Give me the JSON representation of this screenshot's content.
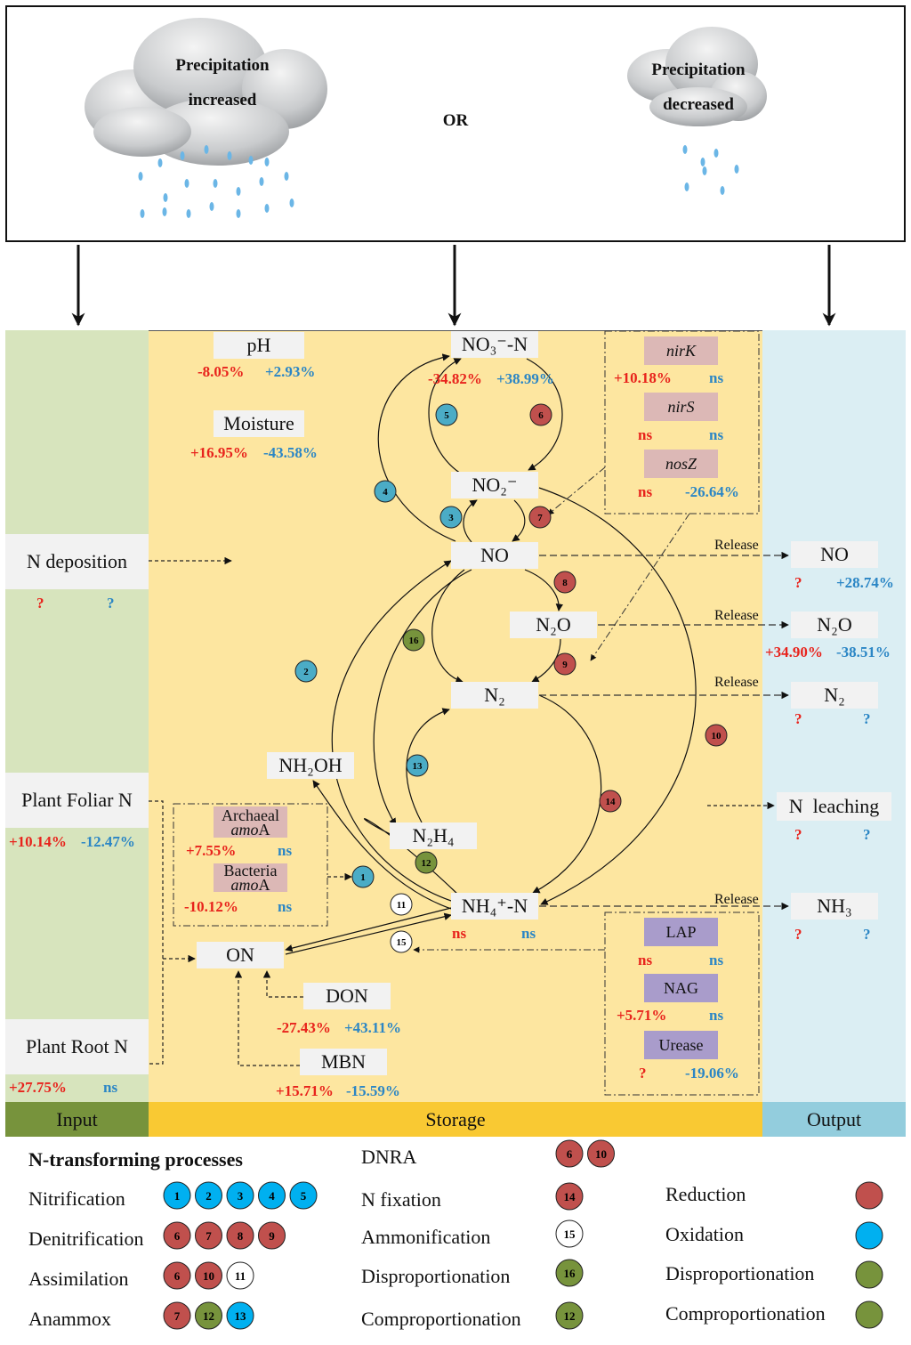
{
  "header": {
    "cloud_left": [
      "Precipitation",
      "increased"
    ],
    "or": "OR",
    "cloud_right": [
      "Precipitation",
      "decreased"
    ]
  },
  "colors": {
    "input_panel": "#d7e4bd",
    "storage_panel": "#fde6a0",
    "output_panel": "#dbeef3",
    "input_bar": "#77933c",
    "storage_bar": "#f9c933",
    "output_bar": "#93cddd",
    "increase_value": "#e8231c",
    "decrease_value": "#2b86c5",
    "reduction": "#c0504d",
    "oxidation": "#00b0f0",
    "disproportionation": "#77933c",
    "comproportionation": "#77933c"
  },
  "sections": {
    "input": "Input",
    "storage": "Storage",
    "output": "Output"
  },
  "inputs": [
    {
      "label": "N deposition",
      "inc": "?",
      "dec": "?"
    },
    {
      "label": "Plant Foliar N",
      "inc": "+10.14%",
      "dec": "-12.47%"
    },
    {
      "label": "Plant Root N",
      "inc": "+27.75%",
      "dec": "ns"
    }
  ],
  "storage": {
    "ph": {
      "label": "pH",
      "inc": "-8.05%",
      "dec": "+2.93%"
    },
    "moisture": {
      "label": "Moisture",
      "inc": "+16.95%",
      "dec": "-43.58%"
    },
    "no3": {
      "label": "NO₃⁻-N",
      "inc": "-34.82%",
      "dec": "+38.99%"
    },
    "no2": {
      "label": "NO₂⁻"
    },
    "no": {
      "label": "NO"
    },
    "n2o": {
      "label": "N₂O"
    },
    "n2": {
      "label": "N₂"
    },
    "nh2oh": {
      "label": "NH₂OH"
    },
    "n2h4": {
      "label": "N₂H₄"
    },
    "nh4": {
      "label": "NH₄⁺-N",
      "inc": "ns",
      "dec": "ns"
    },
    "on": {
      "label": "ON"
    },
    "don": {
      "label": "DON",
      "inc": "-27.43%",
      "dec": "+43.11%"
    },
    "mbn": {
      "label": "MBN",
      "inc": "+15.71%",
      "dec": "-15.59%"
    }
  },
  "genes_denitrification": [
    {
      "label": "nirK",
      "inc": "+10.18%",
      "dec": "ns"
    },
    {
      "label": "nirS",
      "inc": "ns",
      "dec": "ns"
    },
    {
      "label": "nosZ",
      "inc": "ns",
      "dec": "-26.64%"
    }
  ],
  "genes_amoa": [
    {
      "label1": "Archaeal",
      "label2": "amo",
      "label3": "A",
      "inc": "+7.55%",
      "dec": "ns"
    },
    {
      "label1": "Bacteria",
      "label2": "amo",
      "label3": "A",
      "inc": "-10.12%",
      "dec": "ns"
    }
  ],
  "enzymes": [
    {
      "label": "LAP",
      "inc": "ns",
      "dec": "ns"
    },
    {
      "label": "NAG",
      "inc": "+5.71%",
      "dec": "ns"
    },
    {
      "label": "Urease",
      "inc": "?",
      "dec": "-19.06%"
    }
  ],
  "release_label": "Release",
  "outputs": [
    {
      "label": "NO",
      "inc": "?",
      "dec": "+28.74%"
    },
    {
      "label": "N₂O",
      "inc": "+34.90%",
      "dec": "-38.51%"
    },
    {
      "label": "N₂",
      "inc": "?",
      "dec": "?"
    },
    {
      "label": "N  leaching",
      "inc": "?",
      "dec": "?"
    },
    {
      "label": "NH₃",
      "inc": "?",
      "dec": "?"
    }
  ],
  "process_circles": [
    {
      "n": "1",
      "type": "oxidation"
    },
    {
      "n": "2",
      "type": "oxidation"
    },
    {
      "n": "3",
      "type": "oxidation"
    },
    {
      "n": "4",
      "type": "oxidation"
    },
    {
      "n": "5",
      "type": "oxidation"
    },
    {
      "n": "6",
      "type": "reduction"
    },
    {
      "n": "7",
      "type": "reduction"
    },
    {
      "n": "8",
      "type": "reduction"
    },
    {
      "n": "9",
      "type": "reduction"
    },
    {
      "n": "10",
      "type": "reduction"
    },
    {
      "n": "11",
      "type": "none"
    },
    {
      "n": "12",
      "type": "comproportionation"
    },
    {
      "n": "13",
      "type": "oxidation"
    },
    {
      "n": "14",
      "type": "reduction"
    },
    {
      "n": "15",
      "type": "none"
    },
    {
      "n": "16",
      "type": "disproportionation"
    }
  ],
  "legend": {
    "title": "N-transforming processes",
    "processes": [
      {
        "label": "Nitrification",
        "steps": [
          [
            "1",
            "ox"
          ],
          [
            "2",
            "ox"
          ],
          [
            "3",
            "ox"
          ],
          [
            "4",
            "ox"
          ],
          [
            "5",
            "ox"
          ]
        ]
      },
      {
        "label": "Denitrification",
        "steps": [
          [
            "6",
            "red"
          ],
          [
            "7",
            "red"
          ],
          [
            "8",
            "red"
          ],
          [
            "9",
            "red"
          ]
        ]
      },
      {
        "label": "Assimilation",
        "steps": [
          [
            "6",
            "red"
          ],
          [
            "10",
            "red"
          ],
          [
            "11",
            "none"
          ]
        ]
      },
      {
        "label": "Anammox",
        "steps": [
          [
            "7",
            "red"
          ],
          [
            "12",
            "grn"
          ],
          [
            "13",
            "ox"
          ]
        ]
      },
      {
        "label": "DNRA",
        "steps": [
          [
            "6",
            "red"
          ],
          [
            "10",
            "red"
          ]
        ]
      },
      {
        "label": "N fixation",
        "steps": [
          [
            "14",
            "red"
          ]
        ]
      },
      {
        "label": "Ammonification",
        "steps": [
          [
            "15",
            "none"
          ]
        ]
      },
      {
        "label": "Disproportionation",
        "steps": [
          [
            "16",
            "grn"
          ]
        ]
      },
      {
        "label": "Comproportionation",
        "steps": [
          [
            "12",
            "grn"
          ]
        ]
      }
    ],
    "types": [
      {
        "label": "Reduction",
        "kind": "red"
      },
      {
        "label": "Oxidation",
        "kind": "ox"
      },
      {
        "label": "Disproportionation",
        "kind": "grn"
      },
      {
        "label": "Comproportionation",
        "kind": "grn"
      }
    ]
  }
}
